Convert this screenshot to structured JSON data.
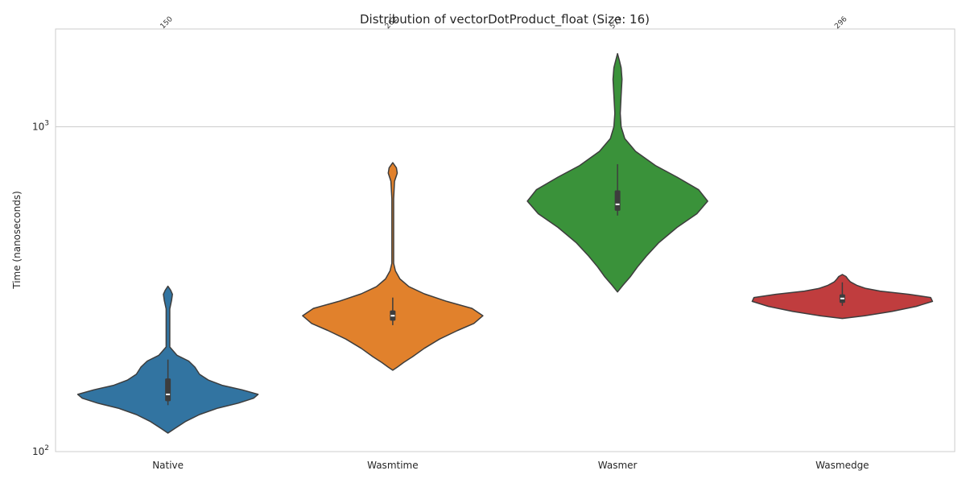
{
  "chart_data": {
    "type": "violin",
    "title": "Distribution of vectorDotProduct_float (Size: 16)",
    "xlabel": "",
    "ylabel": "Time (nanoseconds)",
    "yscale": "log",
    "ylim": [
      100,
      2000
    ],
    "y_ticks": [
      {
        "value": 100,
        "base": "10",
        "exp": "2"
      },
      {
        "value": 1000,
        "base": "10",
        "exp": "3"
      }
    ],
    "grid": "horizontal",
    "categories": [
      "Native",
      "Wasmtime",
      "Wasmer",
      "Wasmedge"
    ],
    "series": [
      {
        "category": "Native",
        "color": "#3274a1",
        "median_label": "150",
        "median": 150,
        "q1": 143,
        "q3": 168,
        "whisker_low": 139,
        "whisker_high": 192,
        "min": 114,
        "max": 323,
        "profile": [
          [
            114,
            0.0
          ],
          [
            118,
            0.08
          ],
          [
            124,
            0.2
          ],
          [
            130,
            0.35
          ],
          [
            136,
            0.55
          ],
          [
            141,
            0.78
          ],
          [
            146,
            0.95
          ],
          [
            150,
            1.0
          ],
          [
            155,
            0.82
          ],
          [
            160,
            0.6
          ],
          [
            166,
            0.45
          ],
          [
            173,
            0.35
          ],
          [
            182,
            0.3
          ],
          [
            190,
            0.23
          ],
          [
            198,
            0.1
          ],
          [
            210,
            0.02
          ],
          [
            240,
            0.02
          ],
          [
            275,
            0.02
          ],
          [
            292,
            0.04
          ],
          [
            305,
            0.05
          ],
          [
            314,
            0.03
          ],
          [
            323,
            0.0
          ]
        ]
      },
      {
        "category": "Wasmtime",
        "color": "#e1812c",
        "median_label": "262",
        "median": 262,
        "q1": 253,
        "q3": 272,
        "whisker_low": 245,
        "whisker_high": 298,
        "min": 178,
        "max": 775,
        "profile": [
          [
            178,
            0.0
          ],
          [
            182,
            0.05
          ],
          [
            188,
            0.12
          ],
          [
            196,
            0.22
          ],
          [
            208,
            0.35
          ],
          [
            222,
            0.52
          ],
          [
            236,
            0.72
          ],
          [
            248,
            0.9
          ],
          [
            262,
            1.0
          ],
          [
            276,
            0.88
          ],
          [
            290,
            0.6
          ],
          [
            306,
            0.35
          ],
          [
            322,
            0.18
          ],
          [
            340,
            0.08
          ],
          [
            360,
            0.03
          ],
          [
            380,
            0.01
          ],
          [
            450,
            0.01
          ],
          [
            600,
            0.01
          ],
          [
            680,
            0.02
          ],
          [
            720,
            0.05
          ],
          [
            748,
            0.04
          ],
          [
            775,
            0.0
          ]
        ]
      },
      {
        "category": "Wasmer",
        "color": "#3a923a",
        "median_label": "577",
        "median": 577,
        "q1": 551,
        "q3": 637,
        "whisker_low": 533,
        "whisker_high": 767,
        "min": 310,
        "max": 1680,
        "profile": [
          [
            310,
            0.0
          ],
          [
            325,
            0.06
          ],
          [
            345,
            0.14
          ],
          [
            370,
            0.22
          ],
          [
            400,
            0.32
          ],
          [
            440,
            0.46
          ],
          [
            490,
            0.66
          ],
          [
            540,
            0.88
          ],
          [
            590,
            1.0
          ],
          [
            640,
            0.9
          ],
          [
            700,
            0.66
          ],
          [
            760,
            0.42
          ],
          [
            840,
            0.2
          ],
          [
            920,
            0.08
          ],
          [
            1000,
            0.04
          ],
          [
            1100,
            0.03
          ],
          [
            1250,
            0.04
          ],
          [
            1400,
            0.05
          ],
          [
            1520,
            0.04
          ],
          [
            1600,
            0.02
          ],
          [
            1680,
            0.0
          ]
        ]
      },
      {
        "category": "Wasmedge",
        "color": "#c03d3e",
        "median_label": "296",
        "median": 296,
        "q1": 287,
        "q3": 305,
        "whisker_low": 281,
        "whisker_high": 332,
        "min": 257,
        "max": 351,
        "profile": [
          [
            257,
            0.0
          ],
          [
            262,
            0.25
          ],
          [
            270,
            0.55
          ],
          [
            280,
            0.82
          ],
          [
            290,
            1.0
          ],
          [
            298,
            0.98
          ],
          [
            305,
            0.74
          ],
          [
            312,
            0.42
          ],
          [
            318,
            0.26
          ],
          [
            325,
            0.16
          ],
          [
            333,
            0.09
          ],
          [
            340,
            0.06
          ],
          [
            346,
            0.04
          ],
          [
            351,
            0.0
          ]
        ]
      }
    ]
  }
}
